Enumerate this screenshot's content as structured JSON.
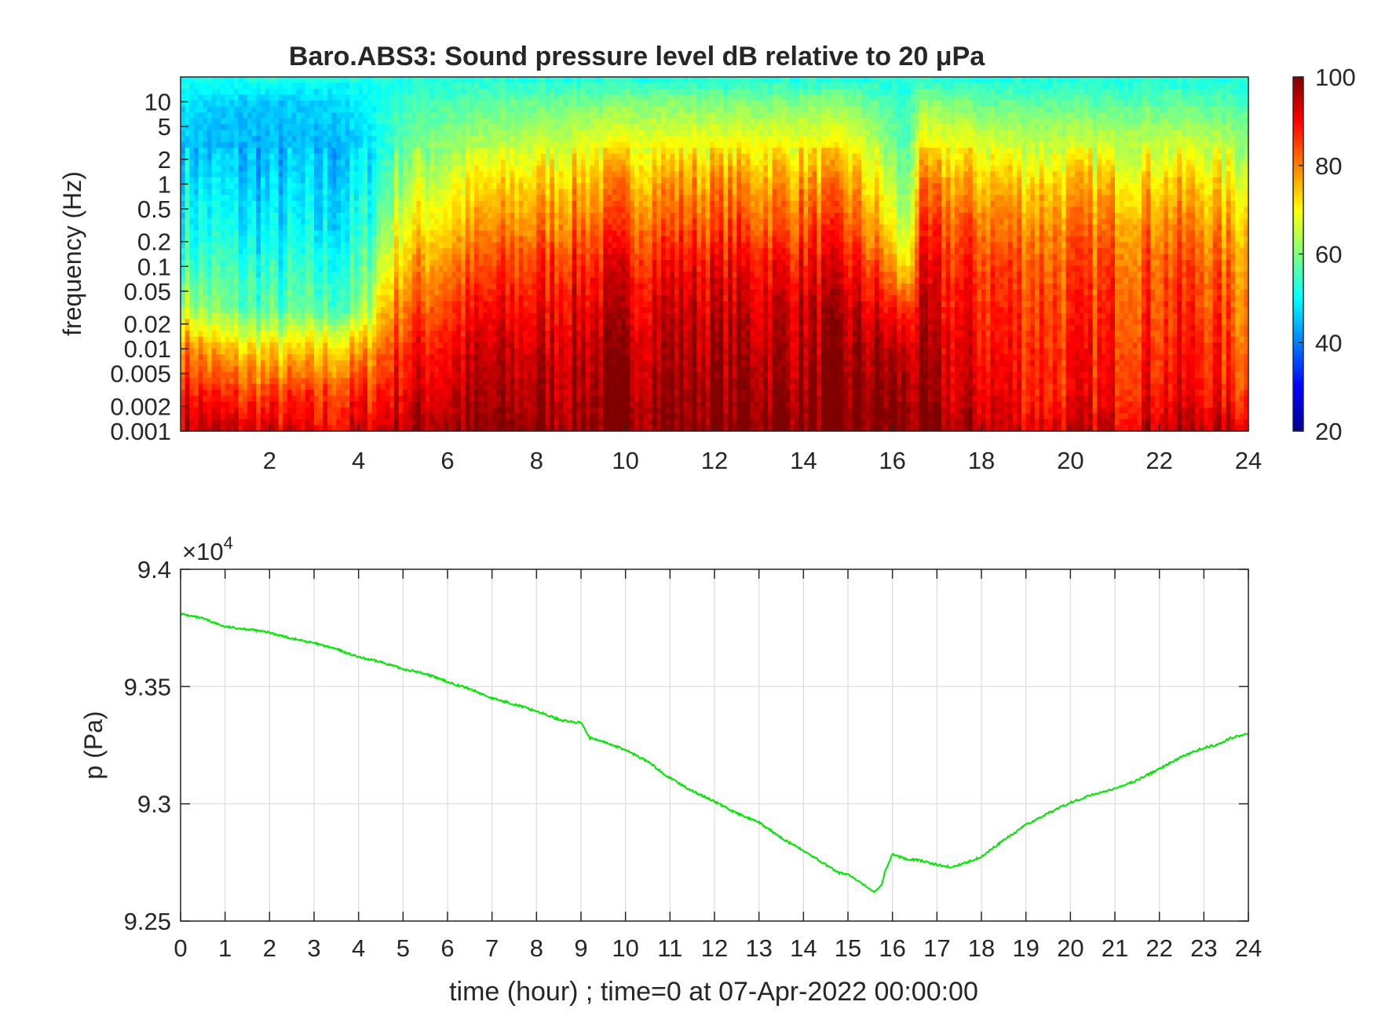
{
  "chart_data": [
    {
      "type": "heatmap",
      "title": "Baro.ABS3: Sound pressure level dB relative to 20 μPa",
      "xlabel": "",
      "ylabel": "frequency (Hz)",
      "yscale": "log",
      "xlim": [
        0,
        24
      ],
      "ylim": [
        0.001,
        20
      ],
      "xticks": [
        2,
        4,
        6,
        8,
        10,
        12,
        14,
        16,
        18,
        20,
        22,
        24
      ],
      "xtick_labels": [
        "2",
        "4",
        "6",
        "8",
        "10",
        "12",
        "14",
        "16",
        "18",
        "20",
        "22",
        "24"
      ],
      "yticks": [
        0.001,
        0.002,
        0.005,
        0.01,
        0.02,
        0.05,
        0.1,
        0.2,
        0.5,
        1,
        2,
        5,
        10
      ],
      "ytick_labels": [
        "0.001",
        "0.002",
        "0.005",
        "0.01",
        "0.02",
        "0.05",
        "0.1",
        "0.2",
        "0.5",
        "1",
        "2",
        "5",
        "10"
      ],
      "colormap": "jet",
      "colorbar": {
        "clim": [
          20,
          100
        ],
        "ticks": [
          20,
          40,
          60,
          80,
          100
        ],
        "tick_labels": [
          "20",
          "40",
          "60",
          "80",
          "100"
        ]
      },
      "grid": false,
      "approx_spl_db": {
        "time_hours": [
          0,
          1,
          2,
          3,
          4,
          4.5,
          5,
          6,
          7,
          8,
          9,
          10,
          11,
          12,
          13,
          14,
          15,
          15.8,
          16.3,
          16.6,
          17,
          18,
          19,
          20,
          21,
          22,
          23,
          24
        ],
        "frequency_hz": [
          0.001,
          0.003,
          0.01,
          0.03,
          0.1,
          0.3,
          1,
          3,
          10,
          20
        ],
        "rows_by_frequency": [
          [
            96,
            94,
            92,
            90,
            92,
            94,
            96,
            98,
            98,
            99,
            99,
            100,
            100,
            100,
            100,
            100,
            100,
            100,
            99,
            98,
            97,
            95,
            93,
            92,
            93,
            95,
            96,
            92
          ],
          [
            90,
            85,
            84,
            84,
            86,
            88,
            92,
            94,
            95,
            96,
            97,
            98,
            98,
            98,
            98,
            98,
            98,
            98,
            97,
            96,
            95,
            92,
            89,
            88,
            89,
            90,
            90,
            85
          ],
          [
            82,
            74,
            72,
            72,
            75,
            82,
            88,
            91,
            93,
            94,
            95,
            96,
            96,
            96,
            96,
            96,
            96,
            96,
            94,
            95,
            93,
            90,
            88,
            87,
            88,
            88,
            88,
            82
          ],
          [
            66,
            58,
            56,
            56,
            58,
            74,
            82,
            86,
            89,
            90,
            92,
            93,
            94,
            94,
            94,
            94,
            94,
            90,
            85,
            92,
            91,
            88,
            86,
            85,
            86,
            86,
            86,
            80
          ],
          [
            56,
            54,
            52,
            52,
            54,
            66,
            76,
            80,
            84,
            86,
            88,
            90,
            90,
            90,
            90,
            90,
            90,
            82,
            70,
            88,
            88,
            86,
            84,
            83,
            84,
            84,
            84,
            78
          ],
          [
            52,
            50,
            48,
            48,
            50,
            60,
            70,
            74,
            78,
            80,
            82,
            84,
            84,
            84,
            84,
            84,
            84,
            74,
            62,
            84,
            84,
            82,
            80,
            80,
            80,
            80,
            80,
            74
          ],
          [
            50,
            47,
            46,
            46,
            48,
            55,
            64,
            68,
            72,
            74,
            76,
            78,
            78,
            78,
            78,
            78,
            78,
            68,
            58,
            78,
            78,
            76,
            74,
            74,
            74,
            74,
            74,
            68
          ],
          [
            46,
            44,
            44,
            44,
            46,
            52,
            58,
            62,
            64,
            66,
            68,
            70,
            70,
            70,
            70,
            70,
            70,
            62,
            55,
            70,
            70,
            68,
            66,
            66,
            66,
            66,
            66,
            62
          ],
          [
            48,
            46,
            46,
            46,
            48,
            52,
            55,
            56,
            57,
            58,
            59,
            60,
            60,
            60,
            60,
            60,
            60,
            56,
            53,
            60,
            60,
            58,
            57,
            57,
            57,
            57,
            57,
            55
          ],
          [
            52,
            52,
            52,
            52,
            52,
            52,
            52,
            52,
            52,
            52,
            52,
            52,
            52,
            52,
            52,
            52,
            52,
            52,
            52,
            52,
            52,
            52,
            52,
            52,
            52,
            52,
            52,
            52
          ]
        ]
      }
    },
    {
      "type": "line",
      "title": "",
      "xlabel": "time (hour) ; time=0 at 07-Apr-2022 00:00:00",
      "ylabel": "p (Pa)",
      "xlim": [
        0,
        24
      ],
      "ylim": [
        92500,
        94000
      ],
      "y_exponent_label": "×10",
      "y_exponent_power": "4",
      "xticks": [
        0,
        1,
        2,
        3,
        4,
        5,
        6,
        7,
        8,
        9,
        10,
        11,
        12,
        13,
        14,
        15,
        16,
        17,
        18,
        19,
        20,
        21,
        22,
        23,
        24
      ],
      "xtick_labels": [
        "0",
        "1",
        "2",
        "3",
        "4",
        "5",
        "6",
        "7",
        "8",
        "9",
        "10",
        "11",
        "12",
        "13",
        "14",
        "15",
        "16",
        "17",
        "18",
        "19",
        "20",
        "21",
        "22",
        "23",
        "24"
      ],
      "yticks": [
        92500,
        93000,
        93500,
        94000
      ],
      "ytick_labels": [
        "9.25",
        "9.3",
        "9.35",
        "9.4"
      ],
      "grid": true,
      "series": [
        {
          "color": "#00e600",
          "x": [
            0,
            0.5,
            1,
            1.5,
            2,
            2.5,
            3,
            3.5,
            4,
            4.5,
            5,
            5.5,
            6,
            6.5,
            7,
            7.5,
            8,
            8.5,
            8.9,
            9,
            9.2,
            9.5,
            10,
            10.5,
            11,
            11.5,
            12,
            12.5,
            13,
            13.5,
            14,
            14.5,
            14.8,
            15,
            15.3,
            15.6,
            15.75,
            15.85,
            16,
            16.3,
            16.6,
            17,
            17.3,
            17.6,
            18,
            18.5,
            19,
            19.5,
            20,
            20.5,
            21,
            21.5,
            22,
            22.5,
            23,
            23.3,
            23.6,
            24
          ],
          "y": [
            93810,
            93790,
            93755,
            93745,
            93730,
            93705,
            93685,
            93660,
            93625,
            93605,
            93575,
            93555,
            93520,
            93490,
            93450,
            93425,
            93395,
            93360,
            93345,
            93350,
            93280,
            93265,
            93230,
            93180,
            93110,
            93055,
            93010,
            92960,
            92920,
            92855,
            92800,
            92740,
            92705,
            92700,
            92660,
            92625,
            92650,
            92720,
            92785,
            92765,
            92760,
            92740,
            92730,
            92745,
            92775,
            92845,
            92910,
            92960,
            93005,
            93040,
            93065,
            93100,
            93150,
            93200,
            93240,
            93250,
            93280,
            93300
          ]
        }
      ]
    }
  ]
}
